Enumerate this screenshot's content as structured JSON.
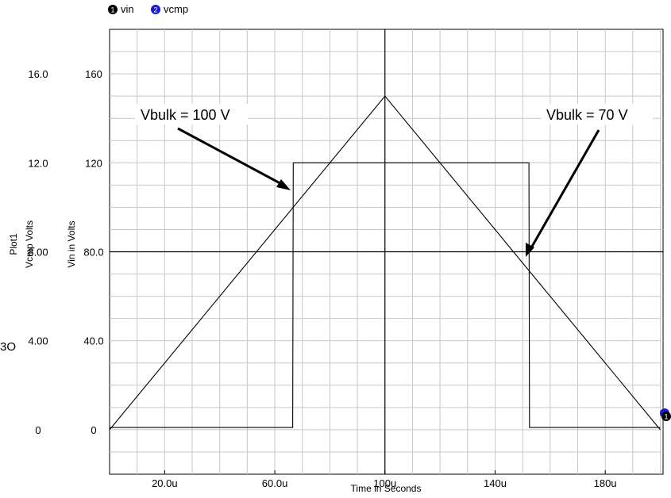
{
  "chart_data": {
    "type": "line",
    "title": "",
    "xlabel": "Time in Seconds",
    "ylabel_left": "Vcmp Volts",
    "ylabel_right": "Vin in Volts",
    "plot_name": "Plot1",
    "stray_text": "3O",
    "xlim": [
      0,
      201
    ],
    "ylim_vin": [
      -20,
      180
    ],
    "ylim_vcmp": [
      -2,
      18
    ],
    "x_ticks": [
      20,
      60,
      100,
      140,
      180
    ],
    "x_tick_labels": [
      "20.0u",
      "60.0u",
      "100u",
      "140u",
      "180u"
    ],
    "y_ticks_vin": [
      0,
      40,
      80,
      120,
      160
    ],
    "y_tick_labels_vin": [
      "0",
      "40.0",
      "80.0",
      "120",
      "160"
    ],
    "y_tick_labels_vcmp": [
      "0",
      "4.00",
      "8.00",
      "12.0",
      "16.0"
    ],
    "grid": true,
    "legend_position": "top-left",
    "legend": [
      {
        "num": "1",
        "name": "vin",
        "color": "#000000"
      },
      {
        "num": "2",
        "name": "vcmp",
        "color": "#1a1acc"
      }
    ],
    "series": [
      {
        "name": "vin",
        "x": [
          0,
          100,
          200
        ],
        "y": [
          0,
          150,
          0
        ]
      },
      {
        "name": "vcmp",
        "x": [
          0,
          66.5,
          66.7,
          152.3,
          152.5,
          200
        ],
        "y": [
          0.1,
          0.1,
          12.0,
          12.0,
          0.1,
          0.1
        ]
      }
    ],
    "annotations": [
      {
        "text": "Vbulk = 100 V"
      },
      {
        "text": "Vbulk = 70 V"
      }
    ]
  }
}
